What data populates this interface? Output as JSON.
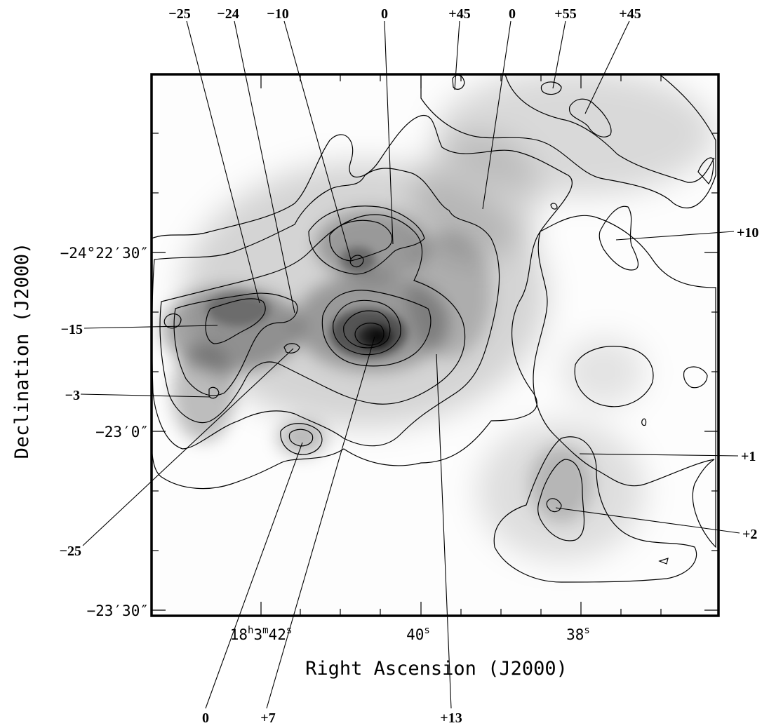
{
  "axes": {
    "x_label": "Right Ascension (J2000)",
    "y_label": "Declination (J2000)",
    "x_ticks": [
      {
        "h": "18",
        "m": "3",
        "s": "42",
        "key": "x42"
      },
      {
        "s": "40",
        "key": "x40"
      },
      {
        "s": "38",
        "key": "x38"
      }
    ],
    "y_ticks": [
      "−24°22′30″",
      "−23′0″",
      "−23′30″"
    ]
  },
  "velocity_labels": [
    {
      "key": "t1",
      "text": "−25"
    },
    {
      "key": "t2",
      "text": "−24"
    },
    {
      "key": "t3",
      "text": "−10"
    },
    {
      "key": "t4",
      "text": "0"
    },
    {
      "key": "t5",
      "text": "+45"
    },
    {
      "key": "t6",
      "text": "0"
    },
    {
      "key": "t7",
      "text": "+55"
    },
    {
      "key": "t8",
      "text": "+45"
    },
    {
      "key": "r1",
      "text": "+10"
    },
    {
      "key": "r2",
      "text": "+1"
    },
    {
      "key": "r3",
      "text": "+2"
    },
    {
      "key": "l1",
      "text": "−15"
    },
    {
      "key": "l2",
      "text": "−3"
    },
    {
      "key": "l3",
      "text": "−25"
    },
    {
      "key": "b1",
      "text": "0"
    },
    {
      "key": "b2",
      "text": "+7"
    },
    {
      "key": "b3",
      "text": "+13"
    }
  ],
  "colors": {
    "frame": "#000000",
    "background": "#ffffff",
    "emission": "#000000"
  }
}
